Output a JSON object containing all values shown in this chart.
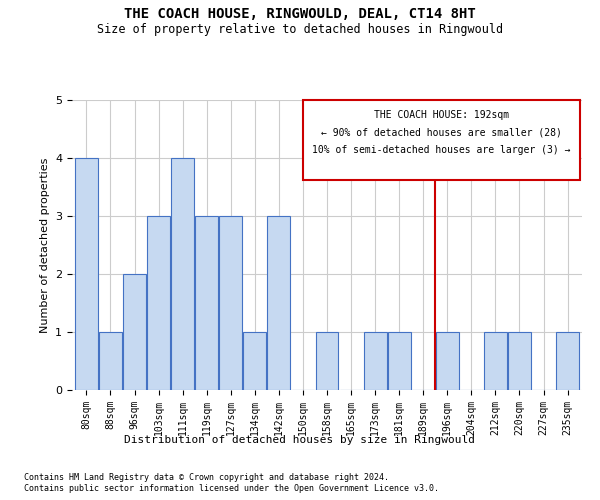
{
  "title": "THE COACH HOUSE, RINGWOULD, DEAL, CT14 8HT",
  "subtitle": "Size of property relative to detached houses in Ringwould",
  "xlabel": "Distribution of detached houses by size in Ringwould",
  "ylabel": "Number of detached properties",
  "categories": [
    "80sqm",
    "88sqm",
    "96sqm",
    "103sqm",
    "111sqm",
    "119sqm",
    "127sqm",
    "134sqm",
    "142sqm",
    "150sqm",
    "158sqm",
    "165sqm",
    "173sqm",
    "181sqm",
    "189sqm",
    "196sqm",
    "204sqm",
    "212sqm",
    "220sqm",
    "227sqm",
    "235sqm"
  ],
  "values": [
    4,
    1,
    2,
    3,
    4,
    3,
    3,
    1,
    3,
    0,
    1,
    0,
    1,
    1,
    0,
    1,
    0,
    1,
    1,
    0,
    1
  ],
  "bar_color": "#c6d9f1",
  "bar_edge_color": "#4472c4",
  "ylim": [
    0,
    5
  ],
  "yticks": [
    0,
    1,
    2,
    3,
    4,
    5
  ],
  "ref_line_x": 14.5,
  "ref_line_label": "THE COACH HOUSE: 192sqm",
  "ref_line_color": "#cc0000",
  "annotation_line1": "← 90% of detached houses are smaller (28)",
  "annotation_line2": "10% of semi-detached houses are larger (3) →",
  "footnote1": "Contains HM Land Registry data © Crown copyright and database right 2024.",
  "footnote2": "Contains public sector information licensed under the Open Government Licence v3.0.",
  "bg_color": "#ffffff",
  "grid_color": "#cccccc"
}
